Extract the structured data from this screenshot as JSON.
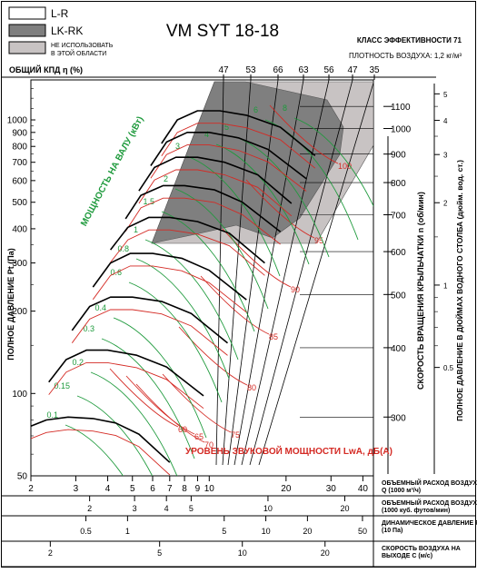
{
  "title": "VM SYT 18-18",
  "header": {
    "efficiency_class": "КЛАСС ЭФФЕКТИВНОСТИ 71",
    "air_density": "ПЛОТНОСТЬ ВОЗДУХА: 1,2 кг/м³"
  },
  "legend": [
    {
      "label": "L-R",
      "color": "#ffffff"
    },
    {
      "label": "LK-RK",
      "color": "#7f7f7f"
    },
    {
      "label": "НЕ ИСПОЛЬЗОВАТЬ В ЭТОЙ ОБЛАСТИ",
      "color": "#c8c3c3"
    }
  ],
  "colors": {
    "green": "#1e9a3c",
    "red": "#d42a24",
    "dark_gray": "#7f7f7f",
    "light_gray": "#c8c3c3"
  },
  "chart_data": {
    "type": "line",
    "title": "VM SYT 18-18",
    "efficiency_label": "ОБЩИЙ КПД η (%)",
    "efficiency_ticks": [
      "47",
      "53",
      "66",
      "63",
      "56",
      "47",
      "35"
    ],
    "y_left": {
      "label": "ПОЛНОЕ ДАВЛЕНИЕ Pt (Па)",
      "scale": "log",
      "range": [
        50,
        1400
      ],
      "ticks": [
        "1000",
        "900",
        "800",
        "700",
        "600",
        "500",
        "400",
        "300",
        "200",
        "100",
        "50"
      ]
    },
    "y_speed": {
      "label": "СКОРОСТЬ ВРАЩЕНИЯ КРЫЛЬЧАТКИ n (об/мин)",
      "ticks": [
        "1100",
        "1000",
        "900",
        "800",
        "700",
        "600",
        "500",
        "400",
        "300"
      ]
    },
    "y_inch": {
      "label": "ПОЛНОЕ ДАВЛЕНИЕ В ДЮЙМАХ ВОДНОГО СТОЛБА (дюйм. вод. ст.)",
      "ticks": [
        "5",
        "4",
        "3",
        "2",
        "1",
        "0.5"
      ]
    },
    "x_axes": [
      {
        "label": "ОБЪЕМНЫЙ РАСХОД ВОЗДУХА Q (1000 м³/ч)",
        "ticks": [
          "2",
          "3",
          "4",
          "5",
          "6",
          "7",
          "8",
          "9",
          "10",
          "20",
          "30",
          "40"
        ]
      },
      {
        "label": "ОБЪЕМНЫЙ РАСХОД ВОЗДУХА Q (1000 куб. футов/мин)",
        "ticks": [
          "1",
          "2",
          "3",
          "4",
          "5",
          "10",
          "20"
        ]
      },
      {
        "label": "ДИНАМИЧЕСКОЕ ДАВЛЕНИЕ Pd (10 Па)",
        "ticks": [
          "0.5",
          "1",
          "5",
          "10",
          "20",
          "50"
        ]
      },
      {
        "label": "СКОРОСТЬ ВОЗДУХА НА ВЫХОДЕ C (м/с)",
        "ticks": [
          "2",
          "5",
          "10",
          "20"
        ]
      }
    ],
    "power_label": "МОЩНОСТЬ НА ВАЛУ (кВт)",
    "power_lines": [
      "8",
      "6",
      "5",
      "4",
      "3",
      "2",
      "1.5",
      "1",
      "0.8",
      "0.6",
      "0.4",
      "0.3",
      "0.2",
      "0.15",
      "0.1"
    ],
    "sound_label": "УРОВЕНЬ ЗВУКОВОЙ МОЩНОСТИ LwA, дБ(A)",
    "sound_lines": [
      "100",
      "95",
      "90",
      "85",
      "80",
      "75",
      "70",
      "65",
      "60"
    ],
    "speed_curves": [
      {
        "rpm": 1100,
        "points": [
          [
            6.5,
            820
          ],
          [
            7.5,
            1000
          ],
          [
            9,
            1080
          ],
          [
            11,
            1080
          ],
          [
            14,
            1040
          ],
          [
            19,
            940
          ],
          [
            26,
            740
          ]
        ]
      },
      {
        "rpm": 1000,
        "points": [
          [
            5.9,
            680
          ],
          [
            6.8,
            830
          ],
          [
            8.2,
            900
          ],
          [
            10,
            900
          ],
          [
            13,
            860
          ],
          [
            17,
            780
          ],
          [
            24,
            610
          ]
        ]
      },
      {
        "rpm": 900,
        "points": [
          [
            5.3,
            550
          ],
          [
            6.1,
            670
          ],
          [
            7.4,
            730
          ],
          [
            9,
            730
          ],
          [
            11.5,
            700
          ],
          [
            15.5,
            630
          ],
          [
            21,
            495
          ]
        ]
      },
      {
        "rpm": 800,
        "points": [
          [
            4.7,
            435
          ],
          [
            5.4,
            530
          ],
          [
            6.6,
            575
          ],
          [
            8,
            575
          ],
          [
            10.5,
            555
          ],
          [
            13.5,
            500
          ],
          [
            19,
            390
          ]
        ]
      },
      {
        "rpm": 700,
        "points": [
          [
            4.1,
            335
          ],
          [
            4.8,
            405
          ],
          [
            5.8,
            440
          ],
          [
            7,
            440
          ],
          [
            9,
            425
          ],
          [
            12,
            385
          ],
          [
            16.5,
            300
          ]
        ]
      },
      {
        "rpm": 600,
        "points": [
          [
            3.5,
            245
          ],
          [
            4.1,
            300
          ],
          [
            4.9,
            325
          ],
          [
            6,
            325
          ],
          [
            7.8,
            312
          ],
          [
            10,
            282
          ],
          [
            14,
            220
          ]
        ]
      },
      {
        "rpm": 500,
        "points": [
          [
            2.9,
            170
          ],
          [
            3.4,
            208
          ],
          [
            4.1,
            225
          ],
          [
            5,
            225
          ],
          [
            6.5,
            217
          ],
          [
            8.5,
            196
          ],
          [
            11.8,
            153
          ]
        ]
      },
      {
        "rpm": 400,
        "points": [
          [
            2.35,
            110
          ],
          [
            2.75,
            133
          ],
          [
            3.3,
            144
          ],
          [
            4,
            144
          ],
          [
            5.2,
            138
          ],
          [
            6.8,
            125
          ],
          [
            9.5,
            98
          ]
        ]
      },
      {
        "rpm": 300,
        "points": [
          [
            2,
            76
          ],
          [
            2.3,
            80
          ],
          [
            2.8,
            82
          ],
          [
            3.5,
            81
          ],
          [
            4.3,
            78
          ],
          [
            5.3,
            71
          ],
          [
            7,
            56
          ]
        ]
      }
    ]
  }
}
